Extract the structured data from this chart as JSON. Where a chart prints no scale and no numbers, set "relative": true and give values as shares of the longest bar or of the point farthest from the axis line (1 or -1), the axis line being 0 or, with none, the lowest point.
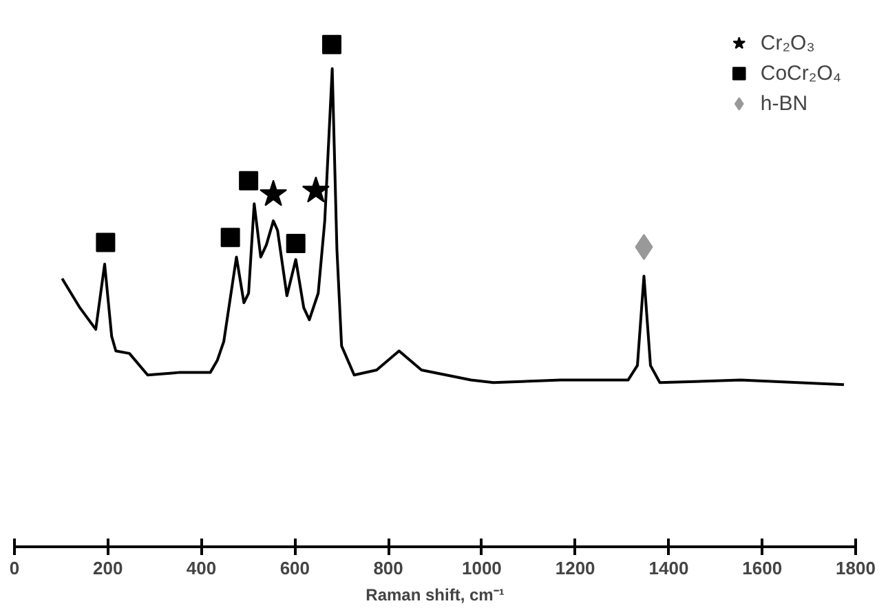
{
  "chart_data": {
    "type": "line",
    "xlabel": "Raman shift, cm⁻¹",
    "relative": true,
    "xlim": [
      0,
      1800
    ],
    "xticks": [
      0,
      200,
      400,
      600,
      800,
      1000,
      1200,
      1400,
      1600,
      1800
    ],
    "grid": false,
    "legend": "top right",
    "series": [
      {
        "color": "#000000",
        "marker": "none",
        "x": [
          102,
          121,
          140,
          174,
          193,
          208,
          217,
          246,
          285,
          352,
          419,
          434,
          448,
          462,
          475,
          491,
          501,
          513,
          527,
          539,
          554,
          563,
          583,
          602,
          619,
          631,
          650,
          664,
          680,
          690,
          700,
          727,
          775,
          823,
          871,
          977,
          1025,
          1169,
          1313,
          1333,
          1347,
          1361,
          1381,
          1554,
          1775
        ],
        "values": [
          0.534,
          0.505,
          0.476,
          0.433,
          0.563,
          0.419,
          0.39,
          0.385,
          0.342,
          0.347,
          0.347,
          0.371,
          0.409,
          0.496,
          0.577,
          0.486,
          0.505,
          0.683,
          0.577,
          0.601,
          0.649,
          0.63,
          0.5,
          0.572,
          0.476,
          0.452,
          0.505,
          0.649,
          0.952,
          0.592,
          0.4,
          0.342,
          0.352,
          0.39,
          0.352,
          0.332,
          0.327,
          0.332,
          0.332,
          0.361,
          0.539,
          0.361,
          0.327,
          0.332,
          0.323
        ]
      },
      {
        "type": "scatter",
        "name": "Cr₂O₃",
        "color": "#000000",
        "marker": "star",
        "x": [
          554,
          645
        ],
        "values": [
          0.702,
          0.709
        ]
      },
      {
        "type": "scatter",
        "name": "CoCr₂O₄",
        "color": "#000000",
        "marker": "square",
        "x": [
          195,
          462,
          501,
          602,
          679
        ],
        "values": [
          0.606,
          0.616,
          0.729,
          0.604,
          1.0
        ]
      },
      {
        "type": "scatter",
        "name": "h-BN",
        "color": "#999999",
        "marker": "diamond",
        "x": [
          1347
        ],
        "values": [
          0.597
        ]
      }
    ]
  }
}
